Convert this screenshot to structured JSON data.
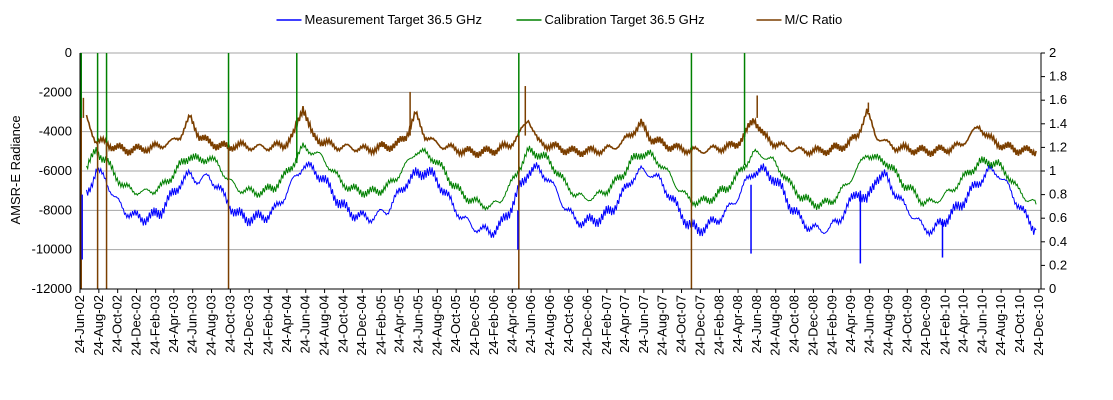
{
  "chart_data": {
    "type": "line",
    "title": "",
    "ylabel": "AMSR-E Radiance",
    "y2label": "",
    "ylim": [
      -12000,
      0
    ],
    "y2lim": [
      0,
      2
    ],
    "yticks": [
      -12000,
      -10000,
      -8000,
      -6000,
      -4000,
      -2000,
      0
    ],
    "y2ticks": [
      0,
      0.2,
      0.4,
      0.6,
      0.8,
      1,
      1.2,
      1.4,
      1.6,
      1.8,
      2
    ],
    "y2tick_labels": [
      "0",
      "0.2",
      "0.4",
      "0.6",
      "0.8",
      "1",
      "1.2",
      "1.4",
      "1.6",
      "1.8",
      "2"
    ],
    "grid": "horizontal",
    "legend_position": "top",
    "x_range": [
      "2002-06-24",
      "2010-12-31"
    ],
    "x_tick_labels": [
      "24-Jun-02",
      "24-Aug-02",
      "24-Oct-02",
      "24-Dec-02",
      "24-Feb-03",
      "24-Apr-03",
      "24-Jun-03",
      "24-Aug-03",
      "24-Oct-03",
      "24-Dec-03",
      "24-Feb-04",
      "24-Apr-04",
      "24-Jun-04",
      "24-Aug-04",
      "24-Oct-04",
      "24-Dec-04",
      "24-Feb-05",
      "24-Apr-05",
      "24-Jun-05",
      "24-Aug-05",
      "24-Oct-05",
      "24-Dec-05",
      "24-Feb-06",
      "24-Apr-06",
      "24-Jun-06",
      "24-Aug-06",
      "24-Oct-06",
      "24-Dec-06",
      "24-Feb-07",
      "24-Apr-07",
      "24-Jun-07",
      "24-Aug-07",
      "24-Oct-07",
      "24-Dec-07",
      "24-Feb-08",
      "24-Apr-08",
      "24-Jun-08",
      "24-Aug-08",
      "24-Oct-08",
      "24-Dec-08",
      "24-Feb-09",
      "24-Apr-09",
      "24-Jun-09",
      "24-Aug-09",
      "24-Oct-09",
      "24-Dec-09",
      "24-Feb-10",
      "24-Apr-10",
      "24-Jun-10",
      "24-Aug-10",
      "24-Oct-10",
      "24-Dec-10"
    ],
    "series": [
      {
        "name": "Measurement Target 36.5 GHz",
        "axis": "left",
        "color": "#0000ff",
        "x": [
          "2002-07",
          "2002-08",
          "2002-09",
          "2002-10",
          "2002-11",
          "2002-12",
          "2003-01",
          "2003-02",
          "2003-03",
          "2003-04",
          "2003-05",
          "2003-06",
          "2003-07",
          "2003-08",
          "2003-09",
          "2003-10",
          "2003-11",
          "2003-12",
          "2004-01",
          "2004-02",
          "2004-03",
          "2004-04",
          "2004-05",
          "2004-06",
          "2004-07",
          "2004-08",
          "2004-09",
          "2004-10",
          "2004-11",
          "2004-12",
          "2005-01",
          "2005-02",
          "2005-03",
          "2005-04",
          "2005-05",
          "2005-06",
          "2005-07",
          "2005-08",
          "2005-09",
          "2005-10",
          "2005-11",
          "2005-12",
          "2006-01",
          "2006-02",
          "2006-03",
          "2006-04",
          "2006-05",
          "2006-06",
          "2006-07",
          "2006-08",
          "2006-09",
          "2006-10",
          "2006-11",
          "2006-12",
          "2007-01",
          "2007-02",
          "2007-03",
          "2007-04",
          "2007-05",
          "2007-06",
          "2007-07",
          "2007-08",
          "2007-09",
          "2007-10",
          "2007-11",
          "2007-12",
          "2008-01",
          "2008-02",
          "2008-03",
          "2008-04",
          "2008-05",
          "2008-06",
          "2008-07",
          "2008-08",
          "2008-09",
          "2008-10",
          "2008-11",
          "2008-12",
          "2009-01",
          "2009-02",
          "2009-03",
          "2009-04",
          "2009-05",
          "2009-06",
          "2009-07",
          "2009-08",
          "2009-09",
          "2009-10",
          "2009-11",
          "2009-12",
          "2010-01",
          "2010-02",
          "2010-03",
          "2010-04",
          "2010-05",
          "2010-06",
          "2010-07",
          "2010-08",
          "2010-09",
          "2010-10",
          "2010-11",
          "2010-12"
        ],
        "values": [
          -7200,
          -6000,
          -6400,
          -7400,
          -8000,
          -8300,
          -8400,
          -8300,
          -8000,
          -7300,
          -6600,
          -6200,
          -6500,
          -6300,
          -6800,
          -7600,
          -8200,
          -8400,
          -8400,
          -8300,
          -8000,
          -7300,
          -6500,
          -5700,
          -5900,
          -6300,
          -7000,
          -7700,
          -8100,
          -8300,
          -8400,
          -8200,
          -8000,
          -7300,
          -6600,
          -6200,
          -6000,
          -6300,
          -7000,
          -7800,
          -8400,
          -8800,
          -9000,
          -9100,
          -8800,
          -8000,
          -7000,
          -6000,
          -5900,
          -6300,
          -7100,
          -7900,
          -8500,
          -8600,
          -8500,
          -8300,
          -7900,
          -7200,
          -6400,
          -6000,
          -6100,
          -6500,
          -7200,
          -8000,
          -8700,
          -9000,
          -8800,
          -8500,
          -8100,
          -7500,
          -6700,
          -6000,
          -6000,
          -6300,
          -7000,
          -7900,
          -8500,
          -8900,
          -9000,
          -8900,
          -8500,
          -7800,
          -7000,
          -7600,
          -6300,
          -6300,
          -7100,
          -7800,
          -8300,
          -8900,
          -9000,
          -8600,
          -8200,
          -7700,
          -7100,
          -6500,
          -6000,
          -6100,
          -6800,
          -7600,
          -8400,
          -9000
        ]
      },
      {
        "name": "Calibration Target 36.5 GHz",
        "axis": "left",
        "color": "#008000",
        "x": [
          "2002-07",
          "2002-08",
          "2002-09",
          "2002-10",
          "2002-11",
          "2002-12",
          "2003-01",
          "2003-02",
          "2003-03",
          "2003-04",
          "2003-05",
          "2003-06",
          "2003-07",
          "2003-08",
          "2003-09",
          "2003-10",
          "2003-11",
          "2003-12",
          "2004-01",
          "2004-02",
          "2004-03",
          "2004-04",
          "2004-05",
          "2004-06",
          "2004-07",
          "2004-08",
          "2004-09",
          "2004-10",
          "2004-11",
          "2004-12",
          "2005-01",
          "2005-02",
          "2005-03",
          "2005-04",
          "2005-05",
          "2005-06",
          "2005-07",
          "2005-08",
          "2005-09",
          "2005-10",
          "2005-11",
          "2005-12",
          "2006-01",
          "2006-02",
          "2006-03",
          "2006-04",
          "2006-05",
          "2006-06",
          "2006-07",
          "2006-08",
          "2006-09",
          "2006-10",
          "2006-11",
          "2006-12",
          "2007-01",
          "2007-02",
          "2007-03",
          "2007-04",
          "2007-05",
          "2007-06",
          "2007-07",
          "2007-08",
          "2007-09",
          "2007-10",
          "2007-11",
          "2007-12",
          "2008-01",
          "2008-02",
          "2008-03",
          "2008-04",
          "2008-05",
          "2008-06",
          "2008-07",
          "2008-08",
          "2008-09",
          "2008-10",
          "2008-11",
          "2008-12",
          "2009-01",
          "2009-02",
          "2009-03",
          "2009-04",
          "2009-05",
          "2009-06",
          "2009-07",
          "2009-08",
          "2009-09",
          "2009-10",
          "2009-11",
          "2009-12",
          "2010-01",
          "2010-02",
          "2010-03",
          "2010-04",
          "2010-05",
          "2010-06",
          "2010-07",
          "2010-08",
          "2010-09",
          "2010-10",
          "2010-11",
          "2010-12"
        ],
        "values": [
          -5800,
          -5000,
          -5400,
          -6200,
          -6800,
          -7000,
          -7100,
          -7000,
          -6800,
          -6300,
          -5700,
          -5200,
          -5500,
          -5300,
          -5700,
          -6400,
          -6900,
          -7000,
          -7100,
          -7000,
          -6800,
          -6300,
          -5600,
          -4800,
          -5000,
          -5300,
          -5900,
          -6500,
          -6900,
          -7000,
          -7100,
          -7000,
          -6800,
          -6300,
          -5700,
          -5000,
          -5100,
          -5400,
          -6000,
          -6700,
          -7200,
          -7500,
          -7700,
          -7800,
          -7500,
          -6800,
          -5900,
          -5000,
          -5100,
          -5400,
          -6000,
          -6700,
          -7200,
          -7400,
          -7300,
          -7100,
          -6700,
          -6200,
          -5500,
          -5100,
          -5200,
          -5600,
          -6200,
          -6900,
          -7400,
          -7600,
          -7500,
          -7200,
          -6900,
          -6400,
          -5700,
          -5100,
          -5200,
          -5500,
          -6100,
          -6800,
          -7300,
          -7600,
          -7700,
          -7600,
          -7200,
          -6600,
          -5900,
          -5100,
          -5400,
          -5500,
          -6100,
          -6700,
          -7100,
          -7600,
          -7600,
          -7300,
          -7000,
          -6500,
          -6000,
          -5600,
          -5500,
          -5700,
          -6200,
          -6900,
          -7400,
          -7700
        ]
      },
      {
        "name": "M/C Ratio",
        "axis": "right",
        "color": "#7b3f00",
        "x": [
          "2002-07",
          "2002-08",
          "2002-09",
          "2002-10",
          "2002-11",
          "2002-12",
          "2003-01",
          "2003-02",
          "2003-03",
          "2003-04",
          "2003-05",
          "2003-06",
          "2003-07",
          "2003-08",
          "2003-09",
          "2003-10",
          "2003-11",
          "2003-12",
          "2004-01",
          "2004-02",
          "2004-03",
          "2004-04",
          "2004-05",
          "2004-06",
          "2004-07",
          "2004-08",
          "2004-09",
          "2004-10",
          "2004-11",
          "2004-12",
          "2005-01",
          "2005-02",
          "2005-03",
          "2005-04",
          "2005-05",
          "2005-06",
          "2005-07",
          "2005-08",
          "2005-09",
          "2005-10",
          "2005-11",
          "2005-12",
          "2006-01",
          "2006-02",
          "2006-03",
          "2006-04",
          "2006-05",
          "2006-06",
          "2006-07",
          "2006-08",
          "2006-09",
          "2006-10",
          "2006-11",
          "2006-12",
          "2007-01",
          "2007-02",
          "2007-03",
          "2007-04",
          "2007-05",
          "2007-06",
          "2007-07",
          "2007-08",
          "2007-09",
          "2007-10",
          "2007-11",
          "2007-12",
          "2008-01",
          "2008-02",
          "2008-03",
          "2008-04",
          "2008-05",
          "2008-06",
          "2008-07",
          "2008-08",
          "2008-09",
          "2008-10",
          "2008-11",
          "2008-12",
          "2009-01",
          "2009-02",
          "2009-03",
          "2009-04",
          "2009-05",
          "2009-06",
          "2009-07",
          "2009-08",
          "2009-09",
          "2009-10",
          "2009-11",
          "2009-12",
          "2010-01",
          "2010-02",
          "2010-03",
          "2010-04",
          "2010-05",
          "2010-06",
          "2010-07",
          "2010-08",
          "2010-09",
          "2010-10",
          "2010-11",
          "2010-12"
        ],
        "values": [
          1.45,
          1.25,
          1.24,
          1.2,
          1.18,
          1.18,
          1.19,
          1.2,
          1.22,
          1.24,
          1.3,
          1.45,
          1.3,
          1.24,
          1.22,
          1.2,
          1.22,
          1.21,
          1.2,
          1.2,
          1.21,
          1.22,
          1.3,
          1.55,
          1.3,
          1.25,
          1.22,
          1.2,
          1.2,
          1.19,
          1.18,
          1.2,
          1.21,
          1.22,
          1.3,
          1.48,
          1.3,
          1.24,
          1.21,
          1.19,
          1.17,
          1.16,
          1.16,
          1.17,
          1.19,
          1.22,
          1.3,
          1.45,
          1.25,
          1.22,
          1.2,
          1.18,
          1.16,
          1.17,
          1.17,
          1.18,
          1.2,
          1.24,
          1.32,
          1.4,
          1.28,
          1.24,
          1.21,
          1.19,
          1.18,
          1.17,
          1.18,
          1.19,
          1.2,
          1.22,
          1.3,
          1.45,
          1.3,
          1.24,
          1.21,
          1.19,
          1.17,
          1.17,
          1.17,
          1.18,
          1.2,
          1.23,
          1.3,
          1.5,
          1.3,
          1.24,
          1.2,
          1.19,
          1.18,
          1.17,
          1.17,
          1.18,
          1.19,
          1.22,
          1.3,
          1.38,
          1.28,
          1.23,
          1.2,
          1.18,
          1.17,
          1.17
        ]
      }
    ],
    "spikes": [
      {
        "series": 1,
        "x": "2002-06-28",
        "value": 0
      },
      {
        "series": 1,
        "x": "2002-08-20",
        "value": 0
      },
      {
        "series": 1,
        "x": "2002-09-18",
        "value": 0
      },
      {
        "series": 1,
        "x": "2003-10-18",
        "value": 0
      },
      {
        "series": 1,
        "x": "2004-05-26",
        "value": 0
      },
      {
        "series": 1,
        "x": "2006-05-15",
        "value": 0
      },
      {
        "series": 1,
        "x": "2007-11-25",
        "value": 0
      },
      {
        "series": 1,
        "x": "2008-05-15",
        "value": 0
      },
      {
        "series": 2,
        "x": "2002-06-28",
        "value": 0
      },
      {
        "series": 2,
        "x": "2002-08-20",
        "value": 0
      },
      {
        "series": 2,
        "x": "2002-09-18",
        "value": 0
      },
      {
        "series": 2,
        "x": "2003-10-18",
        "value": 0
      },
      {
        "series": 2,
        "x": "2006-05-15",
        "value": 0
      },
      {
        "series": 2,
        "x": "2007-11-25",
        "value": 0
      },
      {
        "series": 2,
        "x": "2002-07-05",
        "value": 1.62
      },
      {
        "series": 2,
        "x": "2006-06-05",
        "value": 1.72
      },
      {
        "series": 2,
        "x": "2008-06-25",
        "value": 1.64
      },
      {
        "series": 2,
        "x": "2009-06-20",
        "value": 1.58
      },
      {
        "series": 2,
        "x": "2005-05-28",
        "value": 1.67
      },
      {
        "series": 0,
        "x": "2002-07-01",
        "value": -10500
      },
      {
        "series": 0,
        "x": "2008-06-05",
        "value": -10200
      },
      {
        "series": 0,
        "x": "2009-05-25",
        "value": -10700
      },
      {
        "series": 0,
        "x": "2010-02-15",
        "value": -10400
      },
      {
        "series": 0,
        "x": "2006-05-12",
        "value": -10000
      }
    ]
  }
}
